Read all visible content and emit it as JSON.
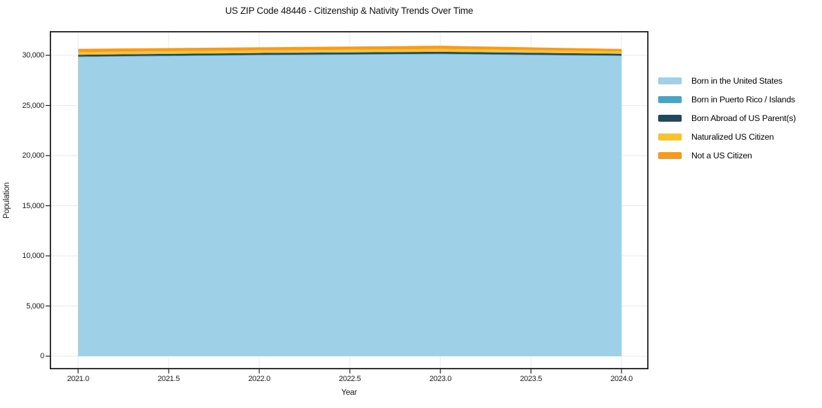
{
  "page": {
    "title": "US ZIP Code 48446 - Citizenship & Nativity Trends Over Time"
  },
  "colors": {
    "background": "#ffffff",
    "spine": "#1a1a1a",
    "grid": "#e9e9e9",
    "text": "#1a1a1a"
  },
  "chart_data": {
    "type": "area",
    "stacked": true,
    "title": "US ZIP Code 48446 - Citizenship & Nativity Trends Over Time",
    "xlabel": "Year",
    "ylabel": "Population",
    "x": [
      2021,
      2022,
      2023,
      2024
    ],
    "series": [
      {
        "name": "Born in the United States",
        "color": "#9ed0e8",
        "values": [
          29830,
          30000,
          30100,
          29930
        ]
      },
      {
        "name": "Born in Puerto Rico / Islands",
        "color": "#45a7c5",
        "values": [
          45,
          50,
          55,
          45
        ]
      },
      {
        "name": "Born Abroad of US Parent(s)",
        "color": "#20495c",
        "values": [
          180,
          185,
          200,
          180
        ]
      },
      {
        "name": "Naturalized US Citizen",
        "color": "#fcc22d",
        "values": [
          270,
          265,
          280,
          245
        ]
      },
      {
        "name": "Not a US Citizen",
        "color": "#f59b22",
        "values": [
          325,
          300,
          320,
          240
        ]
      }
    ],
    "xlim": [
      2020.84,
      2024.15
    ],
    "ylim": [
      -1310,
      32400
    ],
    "grid": true,
    "legend_position": "right of plot, outside",
    "x_ticks": {
      "values": [
        2021.0,
        2021.5,
        2022.0,
        2022.5,
        2023.0,
        2023.5,
        2024.0
      ],
      "labels": [
        "2021.0",
        "2021.5",
        "2022.0",
        "2022.5",
        "2023.0",
        "2023.5",
        "2024.0"
      ]
    },
    "y_ticks": {
      "values": [
        0,
        5000,
        10000,
        15000,
        20000,
        25000,
        30000
      ],
      "labels": [
        "0",
        "5,000",
        "10,000",
        "15,000",
        "20,000",
        "25,000",
        "30,000"
      ]
    }
  }
}
